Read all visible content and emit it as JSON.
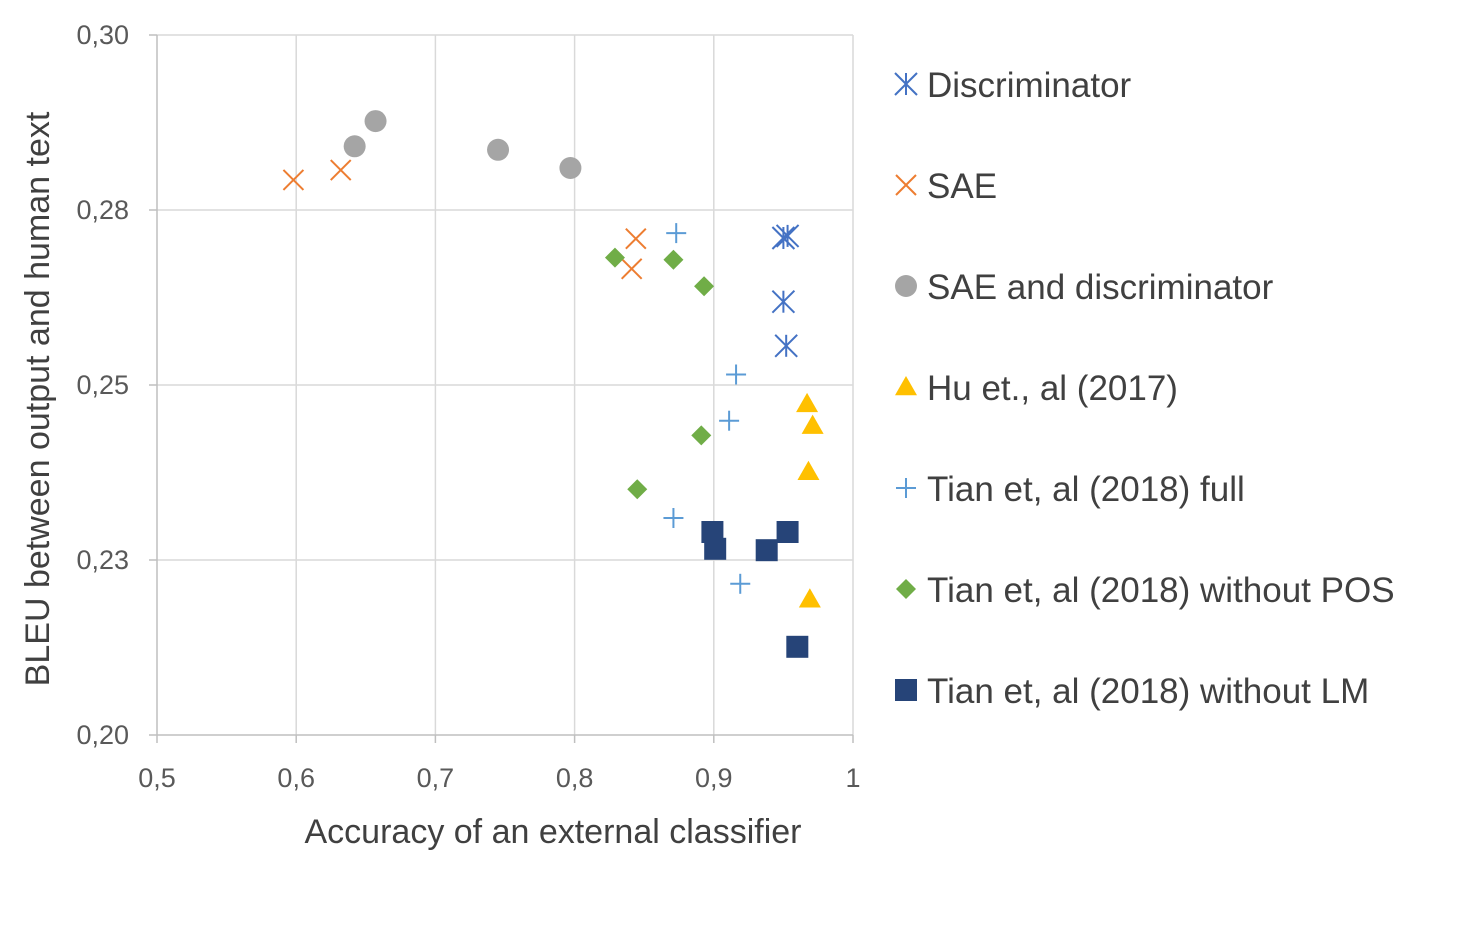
{
  "chart_data": {
    "type": "scatter",
    "title": "",
    "xlabel": "Accuracy of an external classifier",
    "ylabel": "BLEU between output and human text",
    "xlim": [
      0.5,
      1.0
    ],
    "ylim": [
      0.2,
      0.3
    ],
    "xticks": [
      0.5,
      0.6,
      0.7,
      0.8,
      0.9,
      1.0
    ],
    "xtick_labels": [
      "0,5",
      "0,6",
      "0,7",
      "0,8",
      "0,9",
      "1"
    ],
    "yticks": [
      0.2,
      0.225,
      0.25,
      0.275,
      0.3
    ],
    "ytick_labels": [
      "0,20",
      "0,23",
      "0,25",
      "0,28",
      "0,30"
    ],
    "grid": true,
    "legend_position": "right",
    "series": [
      {
        "name": "Discriminator",
        "marker": "asterisk",
        "color": "#4472C4",
        "x": [
          0.95,
          0.953,
          0.95,
          0.952
        ],
        "y": [
          0.271,
          0.2713,
          0.2619,
          0.2556
        ]
      },
      {
        "name": "SAE",
        "marker": "x",
        "color": "#ED7D31",
        "x": [
          0.598,
          0.632,
          0.844,
          0.841
        ],
        "y": [
          0.2793,
          0.2807,
          0.2709,
          0.2666
        ]
      },
      {
        "name": "SAE and discriminator",
        "marker": "circle",
        "color": "#A5A5A5",
        "x": [
          0.657,
          0.642,
          0.745,
          0.797
        ],
        "y": [
          0.2877,
          0.2841,
          0.2836,
          0.281
        ]
      },
      {
        "name": "Hu et., al (2017)",
        "marker": "triangle",
        "color": "#FFC000",
        "x": [
          0.967,
          0.971,
          0.968,
          0.969
        ],
        "y": [
          0.2473,
          0.2442,
          0.2376,
          0.2194
        ]
      },
      {
        "name": "Tian et, al (2018) full",
        "marker": "plus",
        "color": "#5B9BD5",
        "x": [
          0.873,
          0.916,
          0.911,
          0.871,
          0.919
        ],
        "y": [
          0.2717,
          0.2515,
          0.2449,
          0.231,
          0.2216
        ]
      },
      {
        "name": "Tian et, al (2018) without POS",
        "marker": "diamond",
        "color": "#70AD47",
        "x": [
          0.829,
          0.871,
          0.893,
          0.891,
          0.845
        ],
        "y": [
          0.2682,
          0.2679,
          0.2641,
          0.2428,
          0.2351
        ]
      },
      {
        "name": "Tian et, al (2018) without LM",
        "marker": "square",
        "color": "#264478",
        "x": [
          0.899,
          0.901,
          0.938,
          0.953,
          0.96
        ],
        "y": [
          0.229,
          0.2266,
          0.2264,
          0.229,
          0.2126
        ]
      }
    ]
  }
}
